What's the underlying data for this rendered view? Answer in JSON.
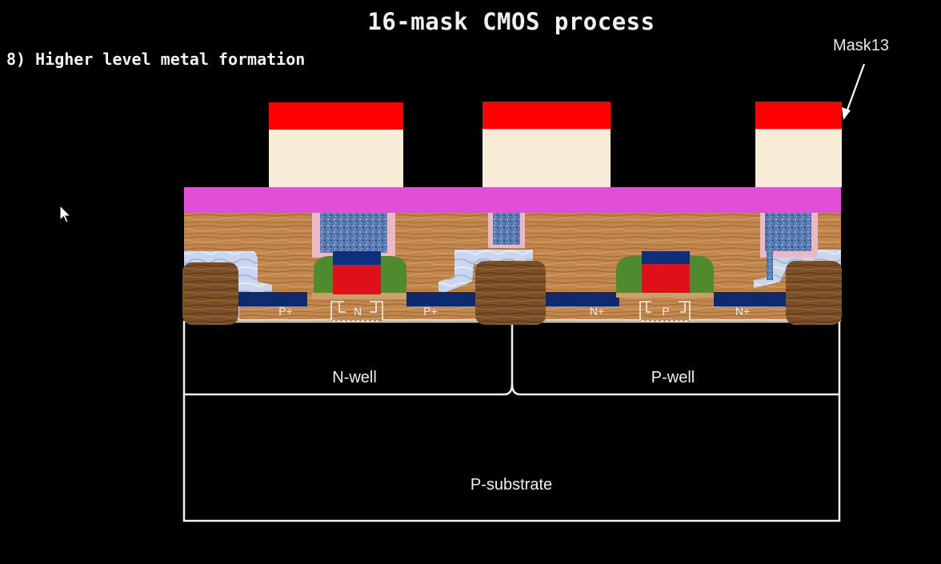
{
  "title": "16-mask CMOS process",
  "step": "8) Higher level metal formation",
  "mask_label": "Mask13",
  "regions": {
    "n_well": "N-well",
    "p_well": "P-well",
    "p_substrate": "P-substrate"
  },
  "diffusions": {
    "pmos_source": "P+",
    "pmos_channel": "N",
    "pmos_drain": "P+",
    "nmos_source": "N+",
    "nmos_channel": "P",
    "nmos_drain": "N+"
  },
  "colors": {
    "background": "#000000",
    "photoresist": "#ff0000",
    "metal": "#f8ecd6",
    "dielectric": "#e04fd6",
    "oxide": "#c2874d",
    "gate_poly": "#e0101a",
    "gate_cap": "#0f2f7a",
    "spacer": "#4f8a2e",
    "via": "#5a7bb0",
    "diffusion_silicide": "#0d2a6e"
  },
  "icons": {
    "cursor": "mouse-pointer-icon",
    "arrow": "arrow-icon"
  }
}
